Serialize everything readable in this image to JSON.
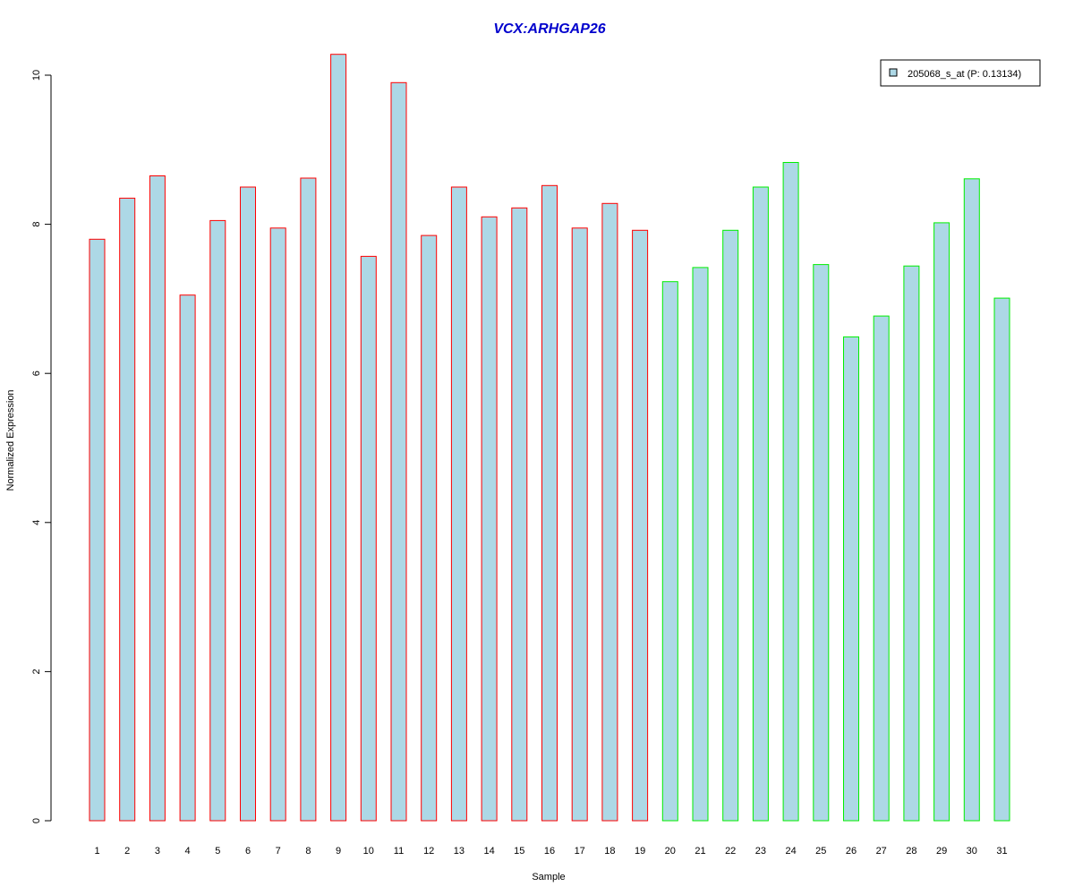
{
  "chart_data": {
    "type": "bar",
    "title": "VCX:ARHGAP26",
    "xlabel": "Sample",
    "ylabel": "Normalized Expression",
    "ylim": [
      0,
      10.3
    ],
    "yticks": [
      0,
      2,
      4,
      6,
      8,
      10
    ],
    "categories": [
      "1",
      "2",
      "3",
      "4",
      "5",
      "6",
      "7",
      "8",
      "9",
      "10",
      "11",
      "12",
      "13",
      "14",
      "15",
      "16",
      "17",
      "18",
      "19",
      "20",
      "21",
      "22",
      "23",
      "24",
      "25",
      "26",
      "27",
      "28",
      "29",
      "30",
      "31"
    ],
    "series": [
      {
        "name": "205068_s_at (P: 0.13134)",
        "values": [
          7.8,
          8.35,
          8.65,
          7.05,
          8.05,
          8.5,
          7.95,
          8.62,
          10.28,
          7.57,
          9.9,
          7.85,
          8.5,
          8.1,
          8.22,
          8.52,
          7.95,
          8.28,
          7.92,
          7.23,
          7.42,
          7.92,
          8.5,
          8.83,
          7.46,
          6.49,
          6.77,
          7.44,
          8.02,
          8.61,
          7.01
        ]
      }
    ],
    "group_border_colors": [
      "#ff0000",
      "#ff0000",
      "#ff0000",
      "#ff0000",
      "#ff0000",
      "#ff0000",
      "#ff0000",
      "#ff0000",
      "#ff0000",
      "#ff0000",
      "#ff0000",
      "#ff0000",
      "#ff0000",
      "#ff0000",
      "#ff0000",
      "#ff0000",
      "#ff0000",
      "#ff0000",
      "#ff0000",
      "#00ee00",
      "#00ee00",
      "#00ee00",
      "#00ee00",
      "#00ee00",
      "#00ee00",
      "#00ee00",
      "#00ee00",
      "#00ee00",
      "#00ee00",
      "#00ee00",
      "#00ee00"
    ],
    "bar_fill_color": "#add8e6",
    "title_color": "#0000cd",
    "legend_position": "top-right",
    "grid": false
  }
}
